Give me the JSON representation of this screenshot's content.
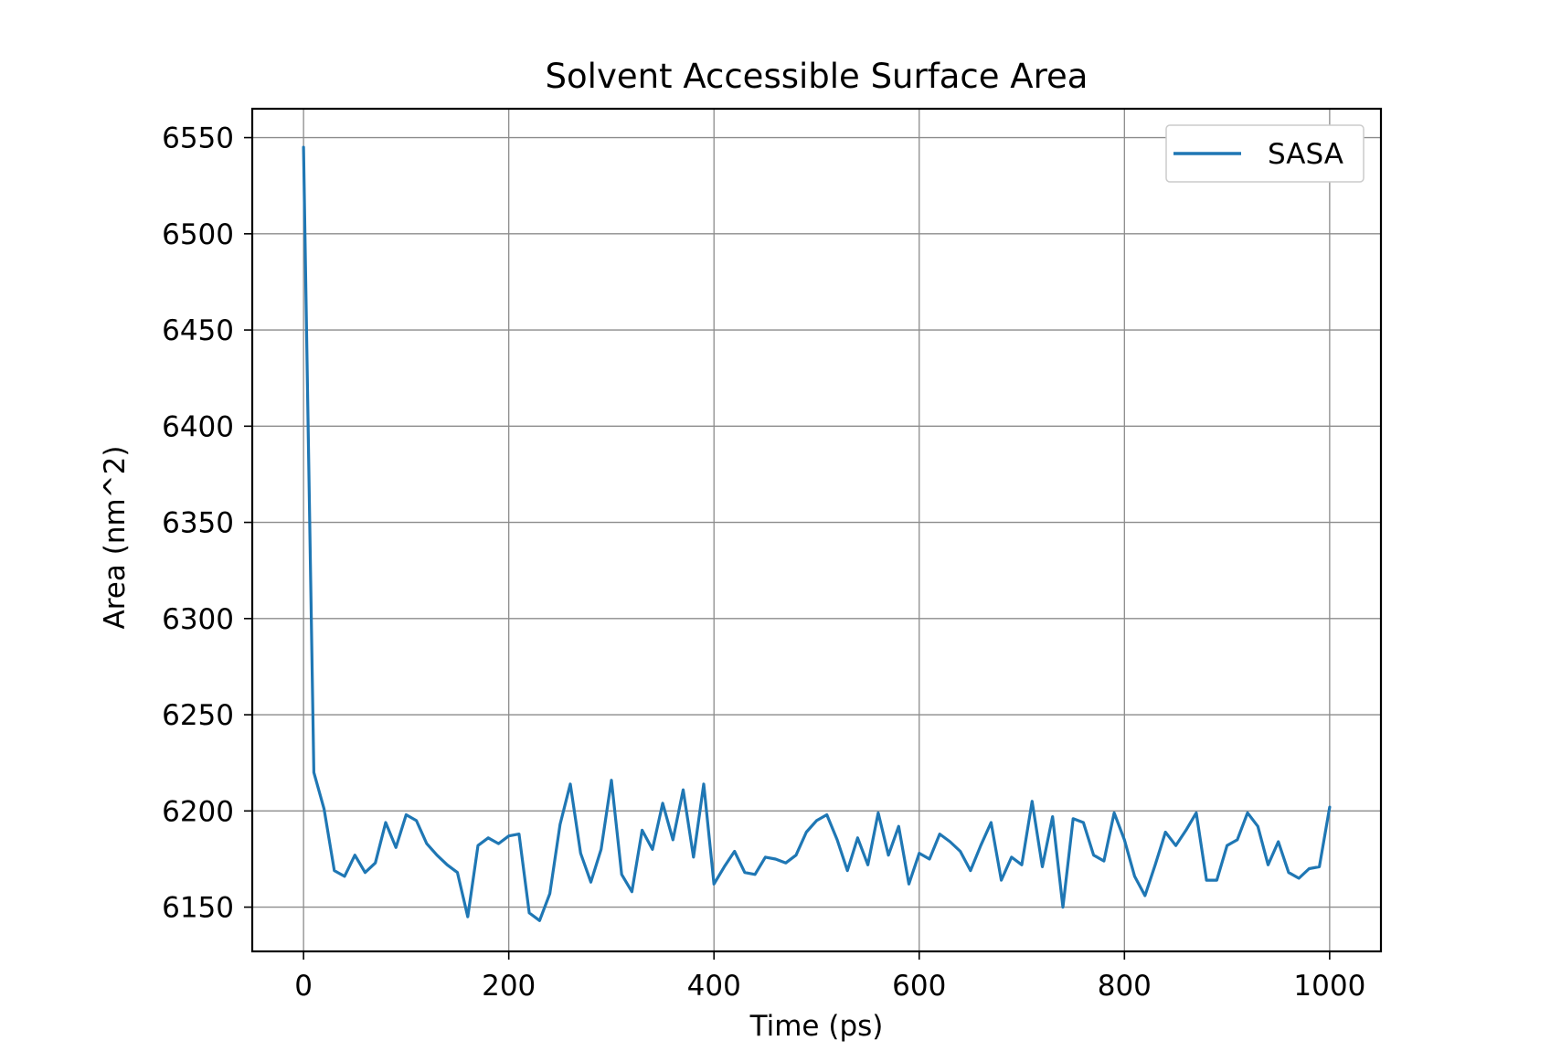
{
  "chart_data": {
    "type": "line",
    "title": "Solvent Accessible Surface Area",
    "xlabel": "Time (ps)",
    "ylabel": "Area (nm^2)",
    "xlim": [
      -50,
      1050
    ],
    "ylim": [
      6127,
      6565
    ],
    "xticks": [
      0,
      200,
      400,
      600,
      800,
      1000
    ],
    "yticks": [
      6150,
      6200,
      6250,
      6300,
      6350,
      6400,
      6450,
      6500,
      6550
    ],
    "grid": true,
    "legend": {
      "position": "top-right"
    },
    "series": [
      {
        "name": "SASA",
        "color": "#1f77b4",
        "x": [
          0,
          10,
          20,
          30,
          40,
          50,
          60,
          70,
          80,
          90,
          100,
          110,
          120,
          130,
          140,
          150,
          160,
          170,
          180,
          190,
          200,
          210,
          220,
          230,
          240,
          250,
          260,
          270,
          280,
          290,
          300,
          310,
          320,
          330,
          340,
          350,
          360,
          370,
          380,
          390,
          400,
          410,
          420,
          430,
          440,
          450,
          460,
          470,
          480,
          490,
          500,
          510,
          520,
          530,
          540,
          550,
          560,
          570,
          580,
          590,
          600,
          610,
          620,
          630,
          640,
          650,
          660,
          670,
          680,
          690,
          700,
          710,
          720,
          730,
          740,
          750,
          760,
          770,
          780,
          790,
          800,
          810,
          820,
          830,
          840,
          850,
          860,
          870,
          880,
          890,
          900,
          910,
          920,
          930,
          940,
          950,
          960,
          970,
          980,
          990,
          1000
        ],
        "y": [
          6545,
          6220,
          6201,
          6169,
          6166,
          6177,
          6168,
          6173,
          6194,
          6181,
          6198,
          6195,
          6183,
          6177,
          6172,
          6168,
          6145,
          6182,
          6186,
          6183,
          6187,
          6188,
          6147,
          6143,
          6157,
          6193,
          6214,
          6178,
          6163,
          6180,
          6216,
          6167,
          6158,
          6190,
          6180,
          6204,
          6185,
          6211,
          6176,
          6214,
          6162,
          6171,
          6179,
          6168,
          6167,
          6176,
          6175,
          6173,
          6177,
          6189,
          6195,
          6198,
          6185,
          6169,
          6186,
          6172,
          6199,
          6177,
          6192,
          6162,
          6178,
          6175,
          6188,
          6184,
          6179,
          6169,
          6182,
          6194,
          6164,
          6176,
          6172,
          6205,
          6171,
          6197,
          6150,
          6196,
          6194,
          6177,
          6174,
          6199,
          6185,
          6166,
          6156,
          6172,
          6189,
          6182,
          6190,
          6199,
          6164,
          6164,
          6182,
          6185,
          6199,
          6192,
          6172,
          6184,
          6168,
          6165,
          6170,
          6171,
          6202
        ]
      }
    ]
  }
}
